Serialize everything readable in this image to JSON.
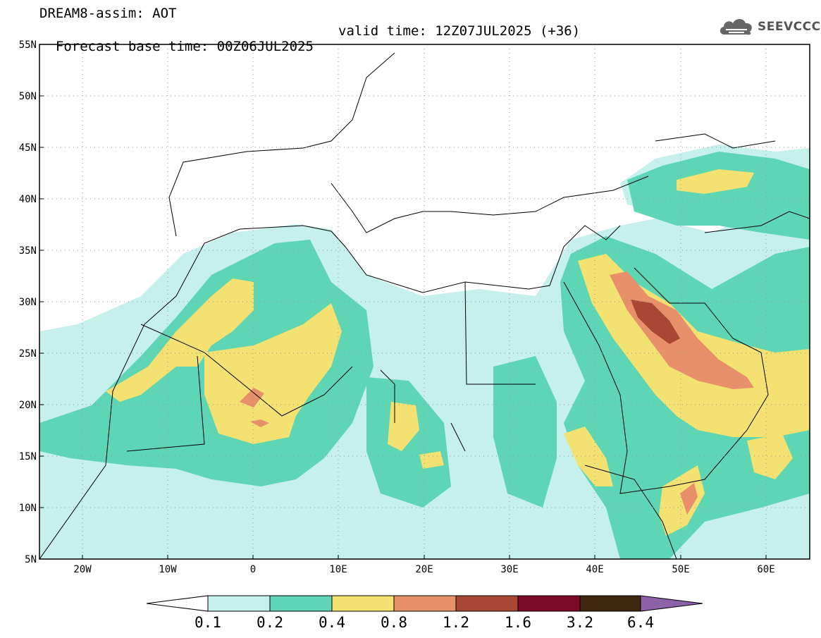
{
  "header": {
    "title": "DREAM8-assim: AOT",
    "base_time": "Forecast base time: 00Z06JUL2025",
    "valid_time": "valid time: 12Z07JUL2025 (+36)"
  },
  "logo": {
    "text": "SEEVCCC",
    "icon": "cloud-icon"
  },
  "map": {
    "lat_labels": [
      "55N",
      "50N",
      "45N",
      "40N",
      "35N",
      "30N",
      "25N",
      "20N",
      "15N",
      "10N",
      "5N"
    ],
    "lon_labels": [
      "20W",
      "10W",
      "0",
      "10E",
      "20E",
      "30E",
      "40E",
      "50E",
      "60E"
    ],
    "lon_range": [
      -25,
      65
    ],
    "lat_range": [
      5,
      55
    ]
  },
  "colorbar": {
    "labels": [
      "0.1",
      "0.2",
      "0.4",
      "0.8",
      "1.2",
      "1.6",
      "3.2",
      "6.4"
    ],
    "colors": [
      "#ffffff",
      "#c6f0ec",
      "#5ed6b4",
      "#f3e172",
      "#e8906a",
      "#a94735",
      "#7a0a25",
      "#3f2712",
      "#8c62a8"
    ]
  }
}
